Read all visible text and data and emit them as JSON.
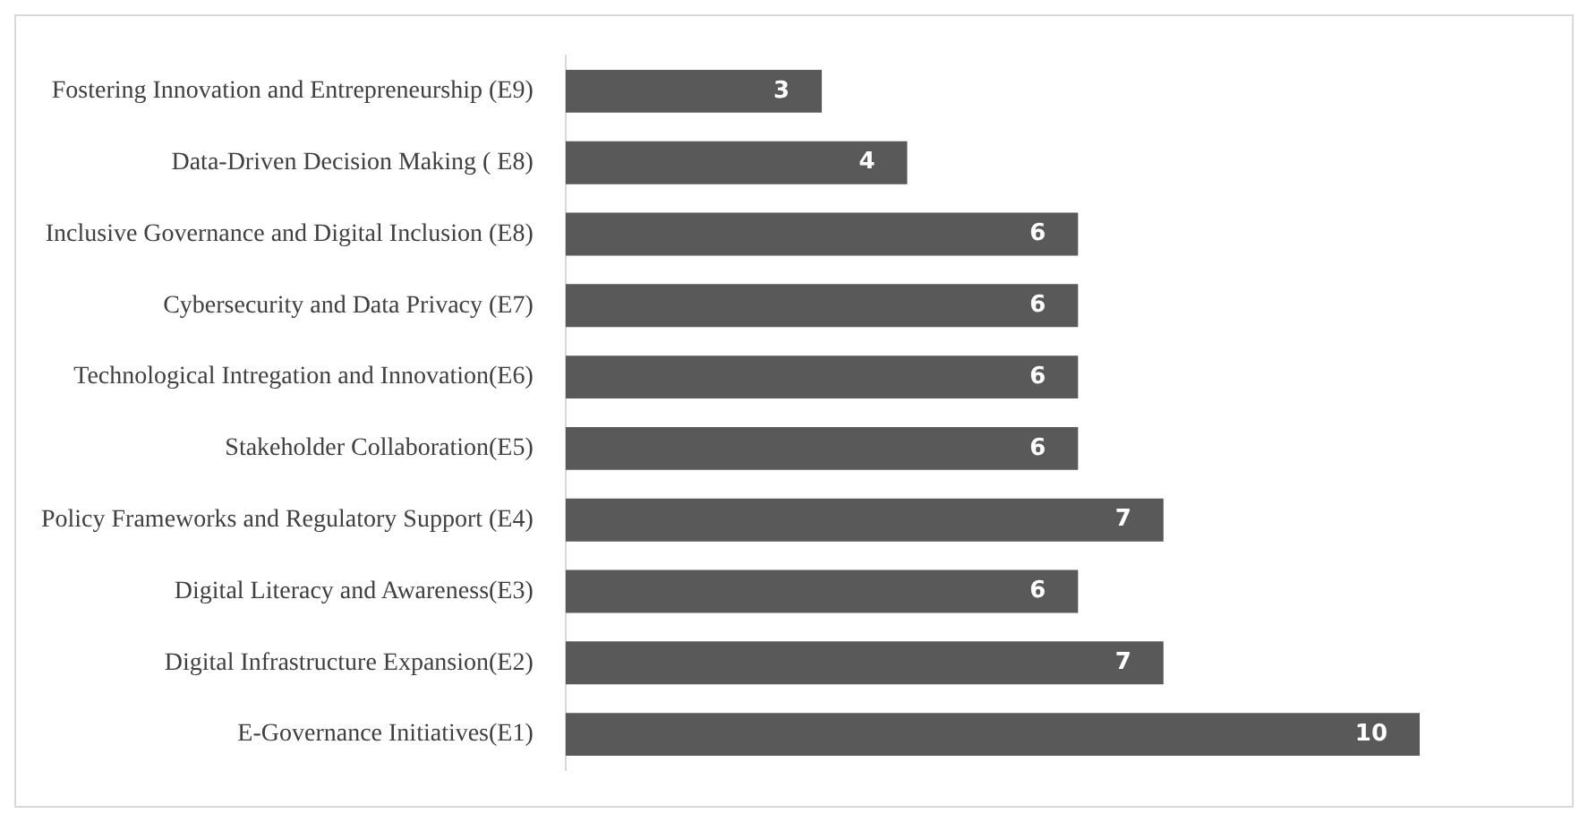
{
  "chart_data": {
    "type": "bar",
    "orientation": "horizontal",
    "categories": [
      "Fostering Innovation and Entrepreneurship (E9)",
      "Data-Driven Decision Making ( E8)",
      "Inclusive Governance and Digital Inclusion (E8)",
      "Cybersecurity and Data Privacy (E7)",
      "Technological Intregation and Innovation(E6)",
      "Stakeholder Collaboration(E5)",
      "Policy Frameworks and Regulatory Support (E4)",
      "Digital Literacy and Awareness(E3)",
      "Digital Infrastructure Expansion(E2)",
      "E-Governance Initiatives(E1)"
    ],
    "values": [
      3,
      4,
      6,
      6,
      6,
      6,
      7,
      6,
      7,
      10
    ],
    "color": "#595959",
    "data_labels": true,
    "legend": false
  }
}
